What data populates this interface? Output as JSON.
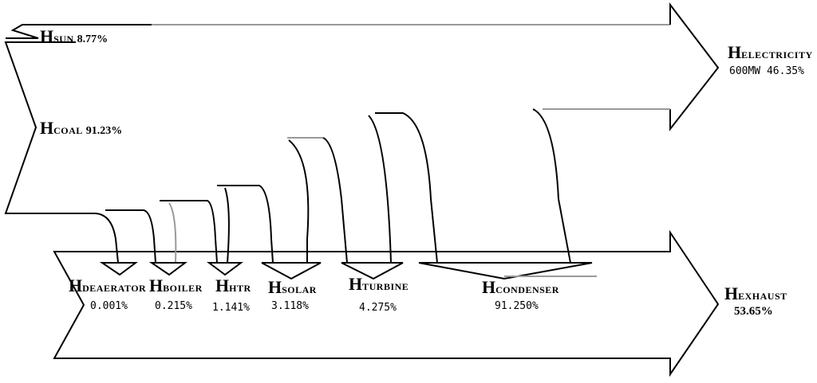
{
  "inputs": {
    "sun": {
      "symbol": "H",
      "sub": "SUN",
      "pct": "8.77%"
    },
    "coal": {
      "symbol": "H",
      "sub": "COAL",
      "pct": "91.23%"
    }
  },
  "outputs": {
    "electricity": {
      "symbol": "H",
      "sub": "ELECTRICITY",
      "value": "600MW 46.35%"
    },
    "exhaust": {
      "symbol": "H",
      "sub": "EXHAUST",
      "pct": "53.65%"
    }
  },
  "losses": [
    {
      "symbol": "H",
      "sub": "DEAERATOR",
      "pct": "0.001%"
    },
    {
      "symbol": "H",
      "sub": "BOILER",
      "pct": "0.215%"
    },
    {
      "symbol": "H",
      "sub": "HTR",
      "pct": "1.141%"
    },
    {
      "symbol": "H",
      "sub": "SOLAR",
      "pct": "3.118%"
    },
    {
      "symbol": "H",
      "sub": "TURBINE",
      "pct": "4.275%"
    },
    {
      "symbol": "H",
      "sub": "CONDENSER",
      "pct": "91.250%"
    }
  ],
  "colors": {
    "line": "#000000",
    "grey": "#999999"
  }
}
